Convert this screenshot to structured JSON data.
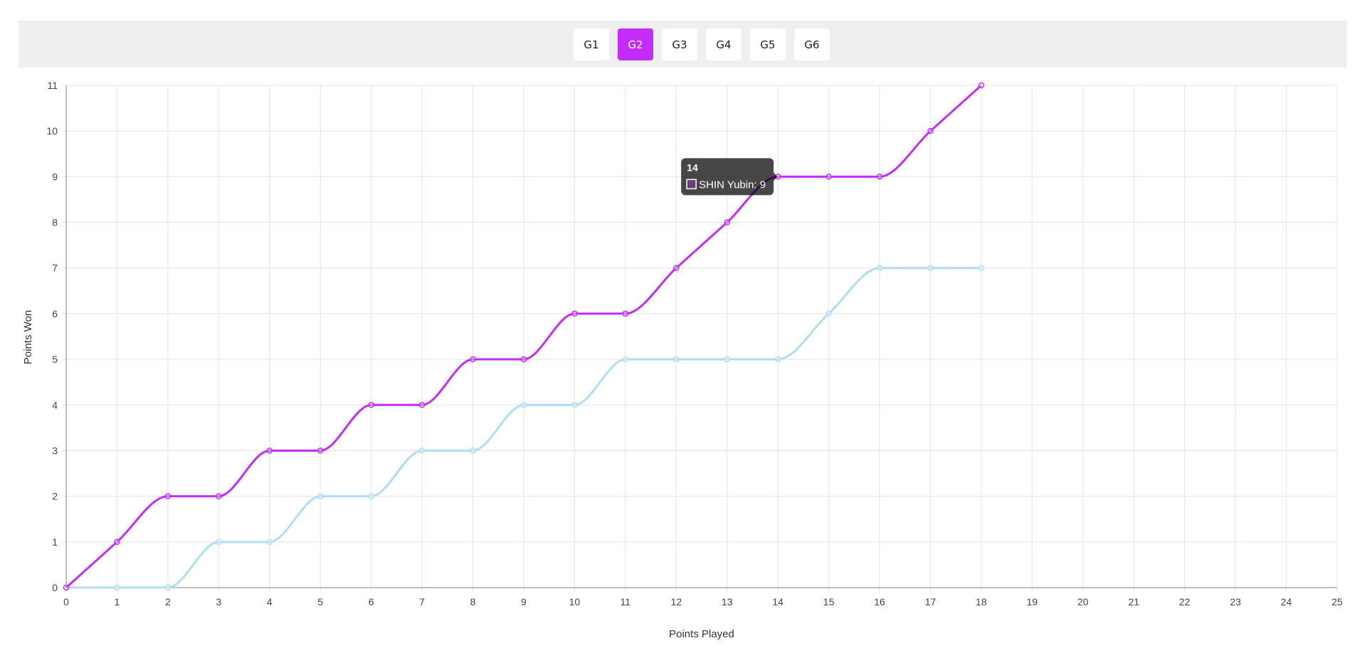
{
  "tabs": [
    {
      "label": "G1",
      "active": false
    },
    {
      "label": "G2",
      "active": true
    },
    {
      "label": "G3",
      "active": false
    },
    {
      "label": "G4",
      "active": false
    },
    {
      "label": "G5",
      "active": false
    },
    {
      "label": "G6",
      "active": false
    }
  ],
  "chart_data": {
    "type": "line",
    "xlabel": "Points Played",
    "ylabel": "Points Won",
    "xlim": [
      0,
      25
    ],
    "ylim": [
      0,
      11
    ],
    "x_ticks": [
      0,
      1,
      2,
      3,
      4,
      5,
      6,
      7,
      8,
      9,
      10,
      11,
      12,
      13,
      14,
      15,
      16,
      17,
      18,
      19,
      20,
      21,
      22,
      23,
      24,
      25
    ],
    "y_ticks": [
      0,
      1,
      2,
      3,
      4,
      5,
      6,
      7,
      8,
      9,
      10,
      11
    ],
    "grid": true,
    "x": [
      0,
      1,
      2,
      3,
      4,
      5,
      6,
      7,
      8,
      9,
      10,
      11,
      12,
      13,
      14,
      15,
      16,
      17,
      18
    ],
    "series": [
      {
        "name": "SHIN Yubin",
        "color": "#c22dfb",
        "values": [
          0,
          1,
          2,
          2,
          3,
          3,
          4,
          4,
          5,
          5,
          6,
          6,
          7,
          8,
          9,
          9,
          9,
          10,
          11
        ]
      },
      {
        "color": "#b2dcf5",
        "values": [
          0,
          0,
          0,
          1,
          1,
          2,
          2,
          3,
          3,
          4,
          4,
          5,
          5,
          5,
          5,
          6,
          7,
          7,
          7
        ]
      }
    ],
    "tooltip": {
      "title": "14",
      "label": "SHIN Yubin: 9",
      "x": 14,
      "y": 9,
      "swatch_color": "#c22dfb"
    }
  }
}
